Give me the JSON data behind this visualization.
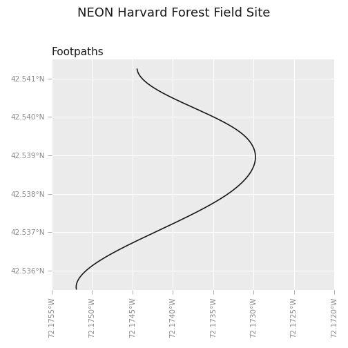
{
  "title": "NEON Harvard Forest Field Site",
  "subtitle": "Footpaths",
  "background_color": "#ebebeb",
  "path_color": "#1a1a1a",
  "grid_color": "#ffffff",
  "xlim": [
    -72.1755,
    -72.172
  ],
  "ylim": [
    42.5355,
    42.5415
  ],
  "xticks": [
    -72.1755,
    -72.175,
    -72.1745,
    -72.174,
    -72.1735,
    -72.173,
    -72.1725,
    -72.172
  ],
  "yticks": [
    42.536,
    42.537,
    42.538,
    42.539,
    42.54,
    42.541
  ],
  "path_waypoints_lon": [
    -72.1742,
    -72.1742,
    -72.1743,
    -72.1744,
    -72.1745,
    -72.1745,
    -72.1744,
    -72.1742,
    -72.174,
    -72.1738,
    -72.1736,
    -72.1734,
    -72.1732,
    -72.173,
    -72.1729,
    -72.1728,
    -72.1728,
    -72.1729,
    -72.173,
    -72.1731,
    -72.1731,
    -72.1731,
    -72.1731,
    -72.173,
    -72.1731,
    -72.1732,
    -72.1733,
    -72.1734,
    -72.1735,
    -72.1736,
    -72.1737,
    -72.1738,
    -72.1739,
    -72.174,
    -72.1741,
    -72.1742,
    -72.1743,
    -72.1744,
    -72.1745,
    -72.1746,
    -72.1747,
    -72.1748,
    -72.1749,
    -72.175,
    -72.1751,
    -72.1752,
    -72.1753,
    -72.1754
  ],
  "path_waypoints_lat": [
    42.5413,
    42.5412,
    42.5411,
    42.541,
    42.5409,
    42.5408,
    42.5406,
    42.5404,
    42.5402,
    42.5401,
    42.54,
    42.5399,
    42.5398,
    42.5397,
    42.5396,
    42.5395,
    42.5393,
    42.5391,
    42.539,
    42.5389,
    42.5388,
    42.5387,
    42.5386,
    42.5385,
    42.5384,
    42.5383,
    42.5382,
    42.5381,
    42.538,
    42.5379,
    42.5378,
    42.5377,
    42.5376,
    42.5375,
    42.5374,
    42.5373,
    42.5372,
    42.5371,
    42.537,
    42.5369,
    42.5368,
    42.5367,
    42.5366,
    42.5365,
    42.5364,
    42.5362,
    42.536,
    42.5358
  ],
  "title_fontsize": 13,
  "subtitle_fontsize": 11,
  "tick_fontsize": 7.5,
  "tick_color": "#888888",
  "linewidth": 1.2
}
